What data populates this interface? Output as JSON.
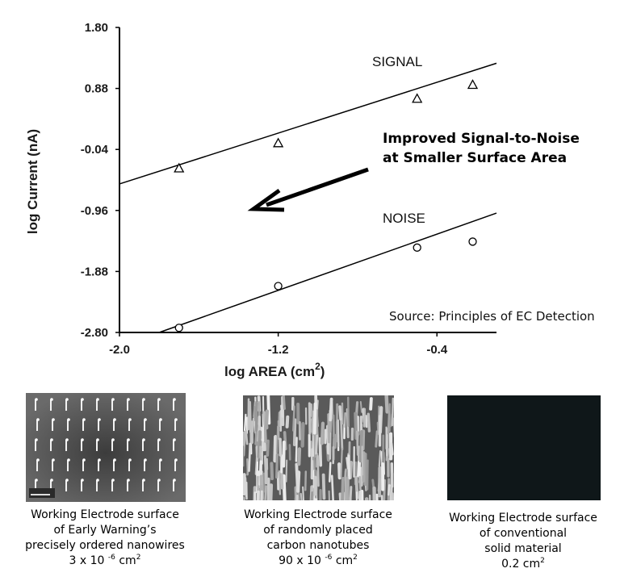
{
  "chart_data": {
    "type": "scatter",
    "xlabel": "log AREA (cm",
    "xlabel_sup": "2",
    "xlabel_close": ")",
    "ylabel": "log Current (nA)",
    "xlim": [
      -2.0,
      -0.1
    ],
    "ylim": [
      -2.8,
      1.8
    ],
    "x_ticks": [
      -2.0,
      -1.2,
      -0.4
    ],
    "x_tick_labels": [
      "-2.0",
      "-1.2",
      "-0.4"
    ],
    "y_ticks": [
      1.8,
      0.88,
      -0.04,
      -0.96,
      -1.88,
      -2.8
    ],
    "y_tick_labels": [
      "1.80",
      "0.88",
      "-0.04",
      "-0.96",
      "-1.88",
      "-2.80"
    ],
    "grid": false,
    "series": [
      {
        "name": "SIGNAL",
        "marker": "triangle",
        "x": [
          -1.7,
          -1.2,
          -0.5,
          -0.22
        ],
        "y": [
          -0.33,
          0.05,
          0.72,
          0.93
        ],
        "fit_line": {
          "x": [
            -2.0,
            -0.1
          ],
          "y": [
            -0.56,
            1.26
          ]
        }
      },
      {
        "name": "NOISE",
        "marker": "circle",
        "x": [
          -1.7,
          -1.2,
          -0.5,
          -0.22
        ],
        "y": [
          -2.73,
          -2.1,
          -1.52,
          -1.43
        ],
        "fit_line": {
          "x": [
            -1.8,
            -0.1
          ],
          "y": [
            -2.8,
            -1.0
          ]
        }
      }
    ]
  },
  "annotation": {
    "line1": "Improved Signal-to-Noise",
    "line2": "at Smaller Surface Area"
  },
  "source_note": "Source: Principles of EC Detection",
  "colors": {
    "line": "#000000",
    "text": "#1a1a1a",
    "photo_dark": "#0f1719"
  },
  "panels": [
    {
      "image": "nanowire-array-micrograph",
      "caption_lines": [
        "Working Electrode surface",
        "of Early Warning’s",
        "precisely ordered nanowires"
      ],
      "area_value": "3 x 10",
      "area_exp": "-6",
      "area_unit": "cm",
      "area_unit_exp": "2"
    },
    {
      "image": "carbon-nanotube-micrograph",
      "caption_lines": [
        "Working Electrode surface",
        "of randomly placed",
        "carbon nanotubes"
      ],
      "area_value": "90 x 10",
      "area_exp": "-6",
      "area_unit": "cm",
      "area_unit_exp": "2"
    },
    {
      "image": "solid-material-surface",
      "caption_lines": [
        "Working Electrode surface",
        "of conventional",
        "solid material"
      ],
      "area_value": "0.2 cm",
      "area_exp": "",
      "area_unit": "",
      "area_unit_exp": "2"
    }
  ]
}
